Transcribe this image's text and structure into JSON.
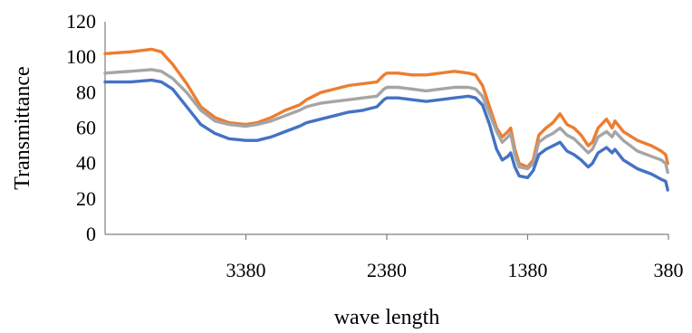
{
  "chart_data": {
    "type": "line",
    "title": "",
    "xlabel": "wave length",
    "ylabel": "Transmittance",
    "xlim": [
      4380,
      380
    ],
    "ylim": [
      0,
      120
    ],
    "x_reversed": true,
    "x_ticks": [
      3380,
      2380,
      1380,
      380
    ],
    "y_ticks": [
      0,
      20,
      40,
      60,
      80,
      100,
      120
    ],
    "grid": false,
    "legend": "none",
    "series": [
      {
        "color": "#ED7D31",
        "points": [
          [
            4380,
            102
          ],
          [
            4200,
            103
          ],
          [
            4050,
            104.5
          ],
          [
            3980,
            103
          ],
          [
            3900,
            96
          ],
          [
            3800,
            85
          ],
          [
            3700,
            72
          ],
          [
            3600,
            66
          ],
          [
            3500,
            63
          ],
          [
            3380,
            62
          ],
          [
            3300,
            63
          ],
          [
            3200,
            66
          ],
          [
            3100,
            70
          ],
          [
            3000,
            73
          ],
          [
            2950,
            76
          ],
          [
            2900,
            78
          ],
          [
            2850,
            80
          ],
          [
            2750,
            82
          ],
          [
            2650,
            84
          ],
          [
            2550,
            85
          ],
          [
            2450,
            86
          ],
          [
            2400,
            90
          ],
          [
            2380,
            91
          ],
          [
            2300,
            91
          ],
          [
            2200,
            90
          ],
          [
            2100,
            90
          ],
          [
            2000,
            91
          ],
          [
            1900,
            92
          ],
          [
            1800,
            91
          ],
          [
            1750,
            90
          ],
          [
            1700,
            84
          ],
          [
            1650,
            72
          ],
          [
            1600,
            60
          ],
          [
            1560,
            55
          ],
          [
            1520,
            58
          ],
          [
            1500,
            60
          ],
          [
            1470,
            48
          ],
          [
            1440,
            40
          ],
          [
            1380,
            38
          ],
          [
            1340,
            42
          ],
          [
            1300,
            56
          ],
          [
            1250,
            60
          ],
          [
            1200,
            63
          ],
          [
            1150,
            68
          ],
          [
            1100,
            62
          ],
          [
            1050,
            60
          ],
          [
            1000,
            56
          ],
          [
            950,
            50
          ],
          [
            920,
            52
          ],
          [
            880,
            60
          ],
          [
            820,
            65
          ],
          [
            780,
            60
          ],
          [
            760,
            64
          ],
          [
            700,
            58
          ],
          [
            600,
            53
          ],
          [
            500,
            50
          ],
          [
            430,
            47
          ],
          [
            400,
            45
          ],
          [
            385,
            40
          ]
        ]
      },
      {
        "color": "#A5A5A5",
        "points": [
          [
            4380,
            91
          ],
          [
            4200,
            92
          ],
          [
            4050,
            93
          ],
          [
            3980,
            92
          ],
          [
            3900,
            88
          ],
          [
            3800,
            80
          ],
          [
            3700,
            70
          ],
          [
            3600,
            64
          ],
          [
            3500,
            62
          ],
          [
            3380,
            61
          ],
          [
            3300,
            62
          ],
          [
            3200,
            64
          ],
          [
            3100,
            67
          ],
          [
            3000,
            70
          ],
          [
            2950,
            72
          ],
          [
            2900,
            73
          ],
          [
            2850,
            74
          ],
          [
            2750,
            75
          ],
          [
            2650,
            76
          ],
          [
            2550,
            77
          ],
          [
            2450,
            78
          ],
          [
            2400,
            82
          ],
          [
            2380,
            83
          ],
          [
            2300,
            83
          ],
          [
            2200,
            82
          ],
          [
            2100,
            81
          ],
          [
            2000,
            82
          ],
          [
            1900,
            83
          ],
          [
            1800,
            83
          ],
          [
            1750,
            82
          ],
          [
            1700,
            78
          ],
          [
            1650,
            68
          ],
          [
            1600,
            58
          ],
          [
            1560,
            52
          ],
          [
            1520,
            55
          ],
          [
            1500,
            57
          ],
          [
            1470,
            45
          ],
          [
            1440,
            38
          ],
          [
            1380,
            37
          ],
          [
            1340,
            40
          ],
          [
            1300,
            52
          ],
          [
            1250,
            55
          ],
          [
            1200,
            57
          ],
          [
            1150,
            60
          ],
          [
            1100,
            56
          ],
          [
            1050,
            54
          ],
          [
            1000,
            50
          ],
          [
            950,
            46
          ],
          [
            920,
            48
          ],
          [
            880,
            55
          ],
          [
            820,
            58
          ],
          [
            780,
            55
          ],
          [
            760,
            58
          ],
          [
            700,
            53
          ],
          [
            600,
            47
          ],
          [
            500,
            44
          ],
          [
            430,
            42
          ],
          [
            400,
            40
          ],
          [
            385,
            35
          ]
        ]
      },
      {
        "color": "#4472C4",
        "points": [
          [
            4380,
            86
          ],
          [
            4200,
            86
          ],
          [
            4050,
            87
          ],
          [
            3980,
            86
          ],
          [
            3900,
            82
          ],
          [
            3800,
            72
          ],
          [
            3700,
            62
          ],
          [
            3600,
            57
          ],
          [
            3500,
            54
          ],
          [
            3380,
            53
          ],
          [
            3300,
            53
          ],
          [
            3200,
            55
          ],
          [
            3100,
            58
          ],
          [
            3000,
            61
          ],
          [
            2950,
            63
          ],
          [
            2900,
            64
          ],
          [
            2850,
            65
          ],
          [
            2750,
            67
          ],
          [
            2650,
            69
          ],
          [
            2550,
            70
          ],
          [
            2450,
            72
          ],
          [
            2400,
            76
          ],
          [
            2380,
            77
          ],
          [
            2300,
            77
          ],
          [
            2200,
            76
          ],
          [
            2100,
            75
          ],
          [
            2000,
            76
          ],
          [
            1900,
            77
          ],
          [
            1800,
            78
          ],
          [
            1750,
            77
          ],
          [
            1700,
            73
          ],
          [
            1650,
            62
          ],
          [
            1600,
            48
          ],
          [
            1560,
            42
          ],
          [
            1520,
            44
          ],
          [
            1500,
            46
          ],
          [
            1470,
            38
          ],
          [
            1440,
            33
          ],
          [
            1380,
            32
          ],
          [
            1340,
            36
          ],
          [
            1300,
            45
          ],
          [
            1250,
            48
          ],
          [
            1200,
            50
          ],
          [
            1150,
            52
          ],
          [
            1100,
            47
          ],
          [
            1050,
            45
          ],
          [
            1000,
            42
          ],
          [
            950,
            38
          ],
          [
            920,
            40
          ],
          [
            880,
            46
          ],
          [
            820,
            49
          ],
          [
            780,
            46
          ],
          [
            760,
            48
          ],
          [
            700,
            42
          ],
          [
            600,
            37
          ],
          [
            500,
            34
          ],
          [
            430,
            31
          ],
          [
            400,
            30
          ],
          [
            385,
            25
          ]
        ]
      }
    ]
  }
}
